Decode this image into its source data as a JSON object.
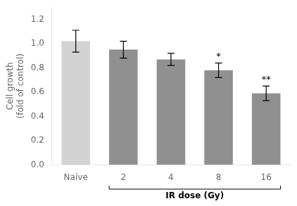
{
  "chart_data": {
    "type": "bar",
    "categories": [
      "Naive",
      "2",
      "4",
      "8",
      "16"
    ],
    "values": [
      1.02,
      0.95,
      0.87,
      0.78,
      0.59
    ],
    "errors": [
      0.09,
      0.07,
      0.05,
      0.06,
      0.06
    ],
    "colors": [
      "#d3d3d3",
      "#909090",
      "#909090",
      "#909090",
      "#909090"
    ],
    "ylabel": "Cell growth\n(fold of control)",
    "ylim": [
      0,
      1.3
    ],
    "yticks": [
      {
        "value": 0.0,
        "label": "0.0"
      },
      0.2,
      0.4,
      0.6,
      0.8,
      {
        "value": 1.0,
        "label": "1.0"
      },
      1.2
    ],
    "grid": false,
    "annotations": [
      {
        "text": "*",
        "category": "8"
      },
      {
        "text": "**",
        "category": "16"
      },
      {
        "text": "IR dose (Gy)",
        "from": "2",
        "to": "16"
      }
    ]
  }
}
